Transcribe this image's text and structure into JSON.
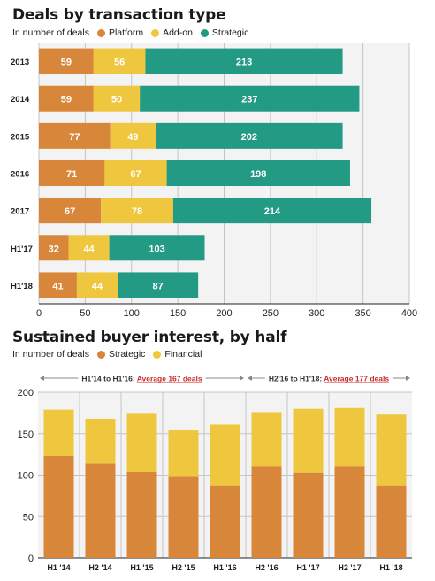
{
  "chart_data": [
    {
      "type": "bar",
      "orientation": "horizontal",
      "stacked": true,
      "title": "Deals by transaction type",
      "subtitle": "In number of deals",
      "categories": [
        "2013",
        "2014",
        "2015",
        "2016",
        "2017",
        "H1'17",
        "H1'18"
      ],
      "series": [
        {
          "name": "Platform",
          "color": "#d8873a",
          "values": [
            59,
            59,
            77,
            71,
            67,
            32,
            41
          ]
        },
        {
          "name": "Add-on",
          "color": "#efc73f",
          "values": [
            56,
            50,
            49,
            67,
            78,
            44,
            44
          ]
        },
        {
          "name": "Strategic",
          "color": "#239a84",
          "values": [
            213,
            237,
            202,
            198,
            214,
            103,
            87
          ]
        }
      ],
      "xlim": [
        0,
        400
      ],
      "xticks": [
        "0",
        "50",
        "100",
        "150",
        "200",
        "250",
        "300",
        "350",
        "400"
      ],
      "grid": true,
      "legend": "top-left"
    },
    {
      "type": "bar",
      "orientation": "vertical",
      "stacked": true,
      "title": "Sustained buyer interest, by half",
      "subtitle": "In number of deals",
      "categories": [
        "H1 '14",
        "H2 '14",
        "H1 '15",
        "H2 '15",
        "H1 '16",
        "H2 '16",
        "H1 '17",
        "H2 '17",
        "H1 '18"
      ],
      "series": [
        {
          "name": "Strategic",
          "color": "#d8873a",
          "values": [
            123,
            114,
            104,
            98,
            87,
            111,
            103,
            111,
            87
          ]
        },
        {
          "name": "Financial",
          "color": "#efc73f",
          "values": [
            56,
            54,
            71,
            56,
            74,
            65,
            77,
            70,
            86
          ]
        }
      ],
      "ylim": [
        0,
        200
      ],
      "yticks": [
        "0",
        "50",
        "100",
        "150",
        "200"
      ],
      "grid": true,
      "legend": "top-left",
      "annotations": [
        {
          "range": "H1 '14 – H1 '16",
          "prefix": "H1'14 to H1'16: ",
          "highlight": "Average 167 deals",
          "color": "#cc2b2b"
        },
        {
          "range": "H2 '16 – H1 '18",
          "prefix": "H2'16 to H1'18: ",
          "highlight": "Average 177 deals",
          "color": "#cc2b2b"
        }
      ]
    }
  ]
}
